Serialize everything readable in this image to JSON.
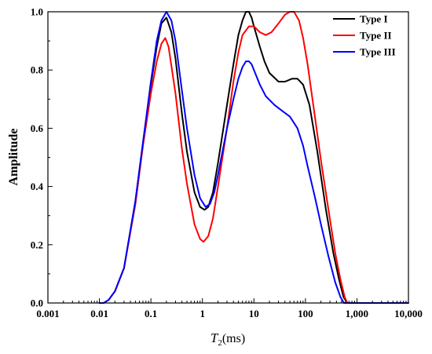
{
  "chart_data": {
    "type": "line",
    "x_scale": "log",
    "xlabel_var": "T",
    "xlabel_sub": "2",
    "xlabel_unit": "(ms)",
    "ylabel": "Amplitude",
    "xlim": [
      0.001,
      10000
    ],
    "ylim": [
      0.0,
      1.0
    ],
    "x_ticks": [
      0.001,
      0.01,
      0.1,
      1,
      10,
      100,
      1000,
      10000
    ],
    "x_tick_labels": [
      "0.001",
      "0.01",
      "0.1",
      "1",
      "10",
      "100",
      "1,000",
      "10,000"
    ],
    "y_ticks": [
      0.0,
      0.2,
      0.4,
      0.6,
      0.8,
      1.0
    ],
    "y_tick_labels": [
      "0.0",
      "0.2",
      "0.4",
      "0.6",
      "0.8",
      "1.0"
    ],
    "grid": false,
    "legend_position": "top-right",
    "series": [
      {
        "name": "Type I",
        "color": "#000000",
        "points": [
          [
            0.01,
            0.0
          ],
          [
            0.012,
            0.0
          ],
          [
            0.015,
            0.01
          ],
          [
            0.02,
            0.04
          ],
          [
            0.03,
            0.12
          ],
          [
            0.05,
            0.35
          ],
          [
            0.07,
            0.55
          ],
          [
            0.1,
            0.75
          ],
          [
            0.13,
            0.88
          ],
          [
            0.16,
            0.96
          ],
          [
            0.2,
            0.98
          ],
          [
            0.25,
            0.93
          ],
          [
            0.3,
            0.84
          ],
          [
            0.4,
            0.65
          ],
          [
            0.5,
            0.52
          ],
          [
            0.7,
            0.38
          ],
          [
            0.9,
            0.33
          ],
          [
            1.1,
            0.32
          ],
          [
            1.3,
            0.33
          ],
          [
            1.6,
            0.38
          ],
          [
            2,
            0.48
          ],
          [
            3,
            0.68
          ],
          [
            4,
            0.82
          ],
          [
            5,
            0.92
          ],
          [
            6,
            0.97
          ],
          [
            7,
            1.0
          ],
          [
            8,
            1.0
          ],
          [
            9,
            0.98
          ],
          [
            10,
            0.95
          ],
          [
            13,
            0.88
          ],
          [
            16,
            0.83
          ],
          [
            20,
            0.79
          ],
          [
            30,
            0.76
          ],
          [
            40,
            0.76
          ],
          [
            55,
            0.77
          ],
          [
            70,
            0.77
          ],
          [
            90,
            0.75
          ],
          [
            120,
            0.68
          ],
          [
            170,
            0.52
          ],
          [
            250,
            0.32
          ],
          [
            350,
            0.17
          ],
          [
            450,
            0.08
          ],
          [
            550,
            0.02
          ],
          [
            650,
            0.0
          ]
        ]
      },
      {
        "name": "Type II",
        "color": "#ff0000",
        "points": [
          [
            0.01,
            0.0
          ],
          [
            0.012,
            0.0
          ],
          [
            0.015,
            0.01
          ],
          [
            0.02,
            0.04
          ],
          [
            0.03,
            0.12
          ],
          [
            0.05,
            0.34
          ],
          [
            0.07,
            0.54
          ],
          [
            0.1,
            0.72
          ],
          [
            0.13,
            0.83
          ],
          [
            0.16,
            0.89
          ],
          [
            0.19,
            0.91
          ],
          [
            0.22,
            0.88
          ],
          [
            0.3,
            0.72
          ],
          [
            0.4,
            0.53
          ],
          [
            0.5,
            0.41
          ],
          [
            0.7,
            0.27
          ],
          [
            0.9,
            0.22
          ],
          [
            1.05,
            0.21
          ],
          [
            1.3,
            0.23
          ],
          [
            1.6,
            0.29
          ],
          [
            2,
            0.4
          ],
          [
            3,
            0.6
          ],
          [
            4,
            0.76
          ],
          [
            5,
            0.86
          ],
          [
            6,
            0.92
          ],
          [
            8,
            0.95
          ],
          [
            10,
            0.95
          ],
          [
            13,
            0.93
          ],
          [
            17,
            0.92
          ],
          [
            22,
            0.93
          ],
          [
            30,
            0.96
          ],
          [
            40,
            0.99
          ],
          [
            50,
            1.0
          ],
          [
            60,
            1.0
          ],
          [
            75,
            0.97
          ],
          [
            90,
            0.91
          ],
          [
            110,
            0.82
          ],
          [
            150,
            0.65
          ],
          [
            200,
            0.49
          ],
          [
            280,
            0.32
          ],
          [
            380,
            0.17
          ],
          [
            480,
            0.08
          ],
          [
            580,
            0.02
          ],
          [
            650,
            0.0
          ]
        ]
      },
      {
        "name": "Type III",
        "color": "#0000ff",
        "points": [
          [
            0.01,
            0.0
          ],
          [
            0.012,
            0.0
          ],
          [
            0.015,
            0.01
          ],
          [
            0.02,
            0.04
          ],
          [
            0.03,
            0.12
          ],
          [
            0.05,
            0.35
          ],
          [
            0.07,
            0.55
          ],
          [
            0.1,
            0.76
          ],
          [
            0.13,
            0.9
          ],
          [
            0.16,
            0.97
          ],
          [
            0.2,
            1.0
          ],
          [
            0.25,
            0.97
          ],
          [
            0.3,
            0.9
          ],
          [
            0.4,
            0.73
          ],
          [
            0.5,
            0.6
          ],
          [
            0.7,
            0.44
          ],
          [
            0.9,
            0.36
          ],
          [
            1.15,
            0.33
          ],
          [
            1.4,
            0.34
          ],
          [
            1.7,
            0.38
          ],
          [
            2,
            0.44
          ],
          [
            3,
            0.6
          ],
          [
            4,
            0.7
          ],
          [
            5,
            0.77
          ],
          [
            6,
            0.81
          ],
          [
            7,
            0.83
          ],
          [
            8,
            0.83
          ],
          [
            9,
            0.82
          ],
          [
            10,
            0.8
          ],
          [
            13,
            0.75
          ],
          [
            17,
            0.71
          ],
          [
            25,
            0.68
          ],
          [
            35,
            0.66
          ],
          [
            50,
            0.64
          ],
          [
            70,
            0.6
          ],
          [
            90,
            0.54
          ],
          [
            110,
            0.47
          ],
          [
            150,
            0.37
          ],
          [
            200,
            0.27
          ],
          [
            280,
            0.16
          ],
          [
            380,
            0.07
          ],
          [
            480,
            0.02
          ],
          [
            560,
            0.0
          ],
          [
            650,
            0.0
          ],
          [
            10000,
            0.0
          ]
        ]
      }
    ]
  }
}
